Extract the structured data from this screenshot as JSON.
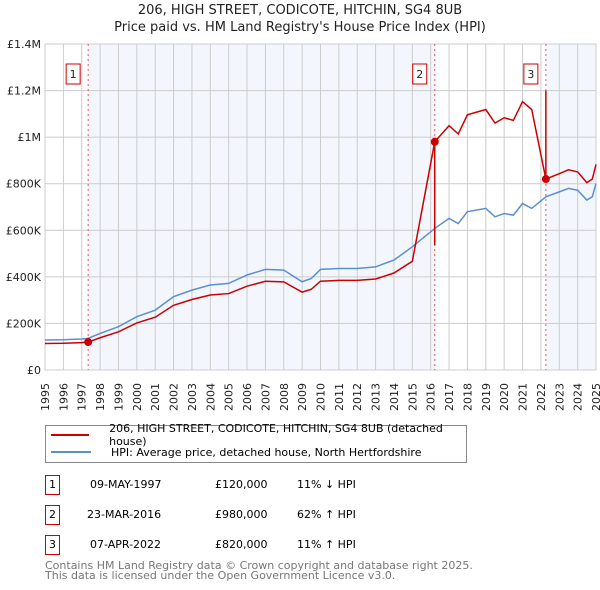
{
  "chart_data": {
    "type": "line",
    "title": "206, HIGH STREET, CODICOTE, HITCHIN, SG4 8UB",
    "subtitle": "Price paid vs. HM Land Registry's House Price Index (HPI)",
    "xlim": [
      1995,
      2025
    ],
    "ylim": [
      0,
      1400000
    ],
    "x_ticks": [
      "1995",
      "1996",
      "1997",
      "1998",
      "1999",
      "2000",
      "2001",
      "2002",
      "2003",
      "2004",
      "2005",
      "2006",
      "2007",
      "2008",
      "2009",
      "2010",
      "2011",
      "2012",
      "2013",
      "2014",
      "2015",
      "2016",
      "2017",
      "2018",
      "2019",
      "2020",
      "2021",
      "2022",
      "2023",
      "2024",
      "2025"
    ],
    "y_ticks": [
      {
        "v": 0,
        "label": "£0"
      },
      {
        "v": 200000,
        "label": "£200K"
      },
      {
        "v": 400000,
        "label": "£400K"
      },
      {
        "v": 600000,
        "label": "£600K"
      },
      {
        "v": 800000,
        "label": "£800K"
      },
      {
        "v": 1000000,
        "label": "£1M"
      },
      {
        "v": 1200000,
        "label": "£1.2M"
      },
      {
        "v": 1400000,
        "label": "£1.4M"
      }
    ],
    "hpi": {
      "name": "HPI: Average price, detached house, North Hertfordshire",
      "color": "#5b8fd0",
      "x": [
        1995,
        1996,
        1997,
        1997.35,
        1998,
        1999,
        2000,
        2001,
        2002,
        2003,
        2004,
        2005,
        2006,
        2007,
        2008,
        2009,
        2009.5,
        2010,
        2011,
        2012,
        2013,
        2014,
        2015,
        2016.22,
        2017,
        2017.5,
        2018,
        2019,
        2019.5,
        2020,
        2020.5,
        2021,
        2021.5,
        2022.27,
        2023,
        2023.5,
        2024,
        2024.5,
        2024.8,
        2025
      ],
      "y": [
        129000,
        130000,
        133000,
        136000,
        157000,
        186000,
        229000,
        257000,
        315000,
        343000,
        365000,
        372000,
        408000,
        432000,
        429000,
        379000,
        393000,
        432000,
        436000,
        436000,
        443000,
        472000,
        529000,
        608000,
        651000,
        629000,
        680000,
        694000,
        658000,
        672000,
        665000,
        715000,
        694000,
        744000,
        765000,
        780000,
        772000,
        730000,
        744000,
        801000
      ]
    },
    "property": {
      "name": "206, HIGH STREET, CODICOTE, HITCHIN, SG4 8UB (detached house)",
      "color": "#cc0000"
    },
    "sales": [
      {
        "n": "1",
        "x": 1997.35,
        "date": "09-MAY-1997",
        "price": 120000,
        "price_label": "£120,000",
        "hpi": "11% ↓ HPI"
      },
      {
        "n": "2",
        "x": 2016.22,
        "date": "23-MAR-2016",
        "price": 980000,
        "price_label": "£980,000",
        "hpi": "62% ↑ HPI"
      },
      {
        "n": "3",
        "x": 2022.27,
        "date": "07-APR-2022",
        "price": 820000,
        "price_label": "£820,000",
        "hpi": "11% ↑ HPI"
      }
    ],
    "grid": true
  },
  "footer": [
    "Contains HM Land Registry data © Crown copyright and database right 2025.",
    "This data is licensed under the Open Government Licence v3.0."
  ]
}
